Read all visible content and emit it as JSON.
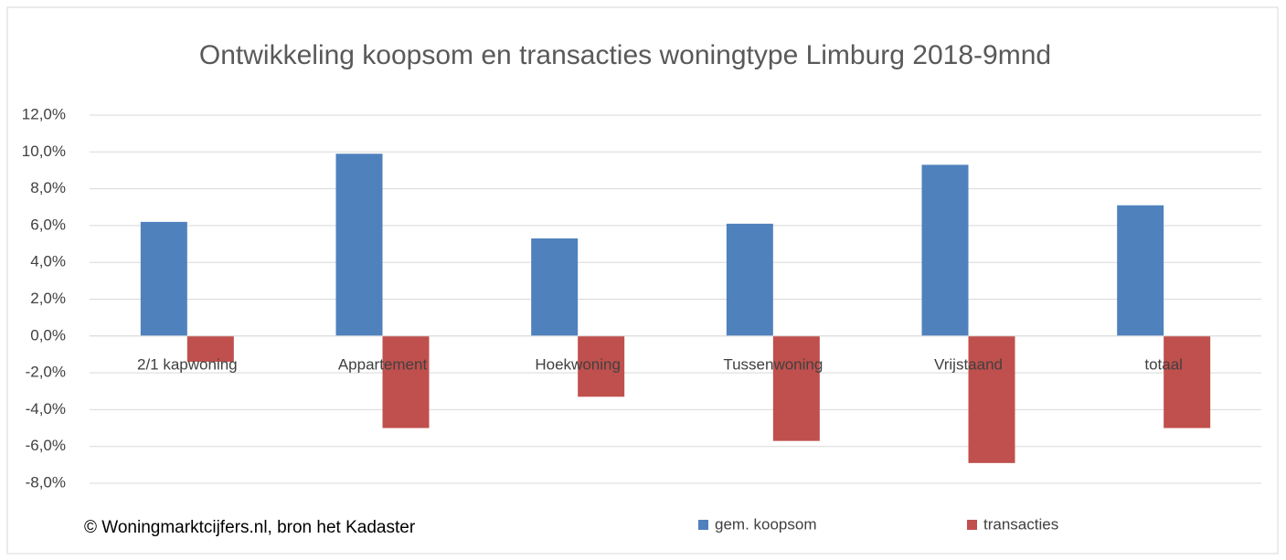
{
  "chart_data": {
    "type": "bar",
    "title": "Ontwikkeling koopsom en transacties woningtype Limburg 2018-9mnd",
    "categories": [
      "2/1 kapwoning",
      "Appartement",
      "Hoekwoning",
      "Tussenwoning",
      "Vrijstaand",
      "totaal"
    ],
    "series": [
      {
        "name": "gem. koopsom",
        "color": "#4f81bd",
        "values": [
          6.2,
          9.9,
          5.3,
          6.1,
          9.3,
          7.1
        ]
      },
      {
        "name": "transacties",
        "color": "#c0504d",
        "values": [
          -1.4,
          -5.0,
          -3.3,
          -5.7,
          -6.9,
          -5.0
        ]
      }
    ],
    "ylim": [
      -8,
      12
    ],
    "yticks": [
      {
        "value": -8,
        "label": "-8,0%"
      },
      {
        "value": -6,
        "label": "-6,0%"
      },
      {
        "value": -4,
        "label": "-4,0%"
      },
      {
        "value": -2,
        "label": "-2,0%"
      },
      {
        "value": 0,
        "label": "0,0%"
      },
      {
        "value": 2,
        "label": "2,0%"
      },
      {
        "value": 4,
        "label": "4,0%"
      },
      {
        "value": 6,
        "label": "6,0%"
      },
      {
        "value": 8,
        "label": "8,0%"
      },
      {
        "value": 10,
        "label": "10,0%"
      },
      {
        "value": 12,
        "label": "12,0%"
      }
    ],
    "grid": true,
    "legend": "bottom",
    "annotation": "© Woningmarktcijfers.nl, bron het Kadaster"
  }
}
